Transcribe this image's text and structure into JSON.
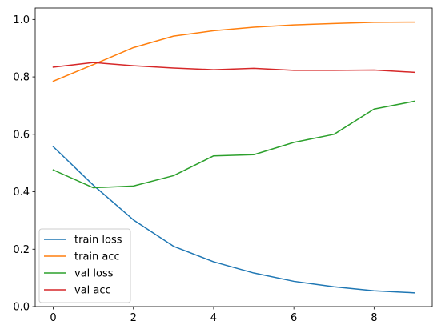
{
  "chart_data": {
    "type": "line",
    "title": "",
    "xlabel": "",
    "ylabel": "",
    "xlim": [
      -0.45,
      9.45
    ],
    "ylim": [
      0.0,
      1.04
    ],
    "xticks": [
      0,
      2,
      4,
      6,
      8
    ],
    "yticks": [
      0.0,
      0.2,
      0.4,
      0.6,
      0.8,
      1.0
    ],
    "xtick_labels": [
      "0",
      "2",
      "4",
      "6",
      "8"
    ],
    "ytick_labels": [
      "0.0",
      "0.2",
      "0.4",
      "0.6",
      "0.8",
      "1.0"
    ],
    "grid": false,
    "legend_position": "lower-left",
    "x": [
      0,
      1,
      2,
      3,
      4,
      5,
      6,
      7,
      8,
      9
    ],
    "series": [
      {
        "name": "train loss",
        "color": "#1f77b4",
        "values": [
          0.557,
          0.423,
          0.302,
          0.21,
          0.156,
          0.117,
          0.088,
          0.069,
          0.055,
          0.048
        ]
      },
      {
        "name": "train acc",
        "color": "#ff7f0e",
        "values": [
          0.785,
          0.843,
          0.902,
          0.942,
          0.961,
          0.973,
          0.981,
          0.986,
          0.99,
          0.991
        ]
      },
      {
        "name": "val loss",
        "color": "#2ca02c",
        "values": [
          0.476,
          0.414,
          0.42,
          0.456,
          0.525,
          0.529,
          0.572,
          0.6,
          0.688,
          0.715
        ]
      },
      {
        "name": "val acc",
        "color": "#d62728",
        "values": [
          0.834,
          0.85,
          0.839,
          0.831,
          0.825,
          0.83,
          0.823,
          0.823,
          0.824,
          0.816
        ]
      }
    ]
  }
}
